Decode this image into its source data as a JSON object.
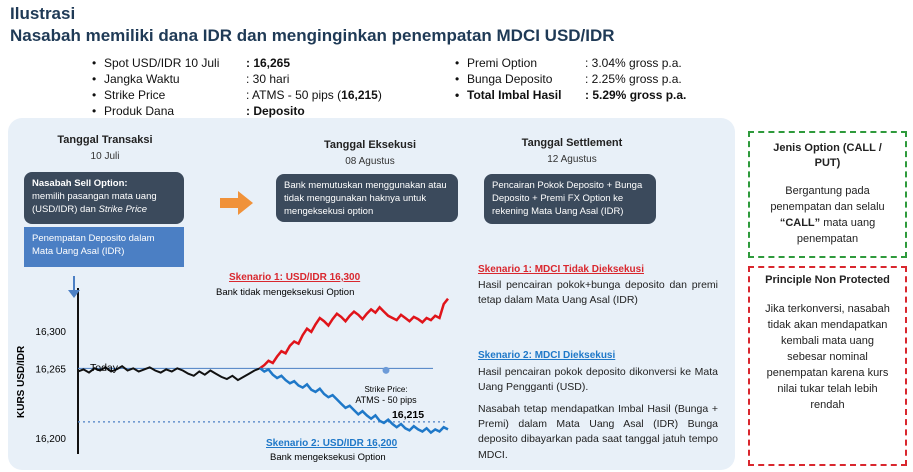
{
  "title": {
    "line1": "Ilustrasi",
    "line2": "Nasabah memiliki dana IDR dan menginginkan penempatan MDCI USD/IDR"
  },
  "terms_left": [
    {
      "label": "Spot USD/IDR 10 Juli",
      "value": ": 16,265",
      "bold": true
    },
    {
      "label": "Jangka Waktu",
      "value": ": 30 hari",
      "bold": false
    },
    {
      "label": "Strike Price",
      "value": ": ATMS - 50 pips (",
      "value_bold": "16,215",
      "value_end": ")",
      "bold": false
    },
    {
      "label": "Produk Dana",
      "value": ": Deposito",
      "bold": true
    }
  ],
  "terms_right": [
    {
      "label": "Premi Option",
      "value": ": 3.04% gross p.a.",
      "bold": false
    },
    {
      "label": "Bunga Deposito",
      "value": ": 2.25% gross p.a.",
      "bold": false
    },
    {
      "label": "Total Imbal Hasil",
      "value": ": 5.29% gross p.a.",
      "bold": true
    }
  ],
  "timeline": {
    "transaksi": {
      "heading": "Tanggal Transaksi",
      "date": "10 Juli"
    },
    "eksekusi": {
      "heading": "Tanggal Eksekusi",
      "date": "08 Agustus"
    },
    "settlement": {
      "heading": "Tanggal Settlement",
      "date": "12 Agustus"
    }
  },
  "boxes": {
    "sell_title": "Nasabah Sell Option:",
    "sell_body": "memilih pasangan mata uang (USD/IDR) dan",
    "sell_em": "Strike Price",
    "penempatan": "Penempatan Deposito dalam Mata Uang Asal (IDR)",
    "bank": "Bank memutuskan menggunakan atau tidak menggunakan haknya untuk mengeksekusi option",
    "pencairan": "Pencairan Pokok Deposito + Bunga Deposito + Premi FX Option ke rekening Mata Uang Asal (IDR)"
  },
  "chart_data": {
    "type": "line",
    "ylabel": "KURS USD/IDR",
    "yticks": [
      "16,300",
      "16,265",
      "16,200"
    ],
    "ylim": [
      16185,
      16340
    ],
    "today_label": "Today",
    "strike_label_1": "Strike Price:",
    "strike_label_2": "ATMS - 50 pips",
    "strike_value": "16,215",
    "scenario1": {
      "name": "Skenario 1: USD/IDR 16,300",
      "note": "Bank tidak mengeksekusi Option"
    },
    "scenario2": {
      "name": "Skenario 2: USD/IDR 16,200",
      "note": "Bank mengeksekusi Option"
    },
    "levels": {
      "spot": 16265,
      "strike": 16215
    },
    "today_path": [
      16262,
      16264,
      16261,
      16265,
      16263,
      16266,
      16262,
      16264,
      16267,
      16263,
      16265,
      16262,
      16264,
      16266,
      16263,
      16261,
      16264,
      16262,
      16265,
      16263,
      16260,
      16258,
      16262,
      16259,
      16263,
      16260,
      16257,
      16255,
      16258,
      16254,
      16257,
      16260,
      16263,
      16265
    ],
    "up_path": [
      16265,
      16268,
      16272,
      16270,
      16276,
      16281,
      16279,
      16286,
      16290,
      16288,
      16296,
      16302,
      16299,
      16306,
      16312,
      16309,
      16305,
      16311,
      16316,
      16313,
      16309,
      16314,
      16318,
      16315,
      16311,
      16316,
      16320,
      16317,
      16322,
      16318,
      16314,
      16312,
      16310,
      16315,
      16312,
      16309,
      16313,
      16311,
      16308,
      16312,
      16310,
      16314,
      16312,
      16325,
      16330
    ],
    "down_path": [
      16265,
      16262,
      16264,
      16259,
      16256,
      16258,
      16254,
      16251,
      16253,
      16249,
      16247,
      16250,
      16245,
      16243,
      16246,
      16241,
      16238,
      16240,
      16236,
      16232,
      16228,
      16230,
      16226,
      16222,
      16225,
      16221,
      16218,
      16221,
      16216,
      16214,
      16217,
      16213,
      16210,
      16213,
      16209,
      16207,
      16211,
      16208,
      16206,
      16209,
      16205,
      16208,
      16206,
      16210,
      16208
    ]
  },
  "scenario_text": {
    "s1_title": "Skenario 1: MDCI Tidak Dieksekusi",
    "s1_body": "Hasil pencairan pokok+bunga deposito dan premi tetap dalam Mata Uang Asal (IDR)",
    "s2_title": "Skenario 2: MDCI Dieksekusi",
    "s2_body": "Hasil pencairan pokok deposito dikonversi ke Mata Uang Pengganti (USD).",
    "s2_body2": "Nasabah tetap mendapatkan Imbal Hasil (Bunga + Premi) dalam Mata Uang Asal (IDR) Bunga deposito dibayarkan pada saat tanggal jatuh tempo MDCI."
  },
  "side": {
    "jenis_title": "Jenis Option (CALL / PUT)",
    "jenis_body1": "Bergantung pada penempatan dan selalu",
    "jenis_call": "“CALL”",
    "jenis_body2": "mata uang penempatan",
    "pnp_title": "Principle Non Protected",
    "pnp_body": "Jika terkonversi, nasabah tidak akan mendapatkan kembali mata uang sebesar nominal penempatan karena kurs nilai tukar telah lebih rendah"
  },
  "colors": {
    "up": "#e0141a",
    "down": "#1f78c8",
    "panel": "#e8f0f8",
    "green": "#2e9a3c",
    "red": "#d9272e",
    "arrow": "#f0923a"
  }
}
